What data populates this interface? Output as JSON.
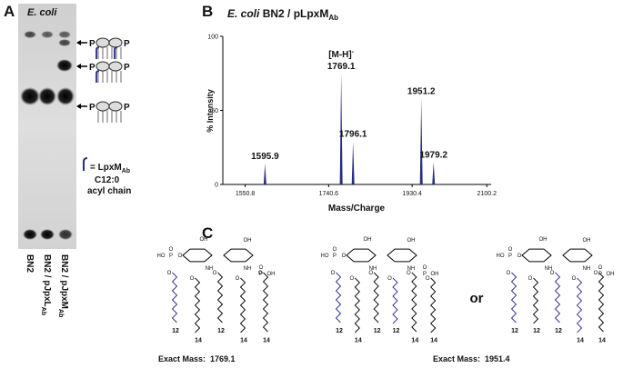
{
  "panels": {
    "a": "A",
    "b": "B",
    "c": "C"
  },
  "tlc": {
    "title": "E. coli",
    "lanes": [
      {
        "text": "BN2",
        "sub": null
      },
      {
        "text": "BN2 / pJpxL",
        "sub": "Ab"
      },
      {
        "text": "BN2 / pJpxM",
        "sub": "Ab"
      }
    ],
    "icon_label": "P",
    "legend": {
      "text": "= LpxM",
      "sub": "Ab",
      "line2": "C12:0",
      "line3": "acyl chain"
    }
  },
  "chart_data": {
    "type": "spectrum",
    "title": {
      "italic": "E. coli",
      "text": "BN2 / pLpxM",
      "sub": "Ab"
    },
    "xlabel": "Mass/Charge",
    "ylabel": "% Intensity",
    "x": [
      1595.9,
      1769.1,
      1796.1,
      1951.2,
      1979.2
    ],
    "values": [
      14,
      75,
      29,
      58,
      15
    ],
    "color": "#2a2a8a",
    "annotation": {
      "text": "[M-H]",
      "sup": "-"
    },
    "xlim": [
      1500,
      2110
    ],
    "xticks": [
      1550.8,
      1740.6,
      1930.4,
      2100.2
    ],
    "ylim": [
      0,
      100
    ],
    "yticks": [
      0,
      50,
      100
    ]
  },
  "structures": {
    "atoms": {
      "ho": "HO",
      "p": "P",
      "o": "O",
      "oh": "OH",
      "nh": "NH"
    },
    "or": "or",
    "mass_label": "Exact Mass:",
    "items": [
      {
        "chain_ends": [
          12,
          14,
          12,
          14,
          14
        ],
        "mass": 1769.1
      },
      {
        "chain_ends": [
          12,
          14,
          12,
          12,
          14,
          14
        ],
        "mass": 1951.4
      },
      {
        "chain_ends": [
          12,
          12,
          12,
          14,
          14
        ],
        "mass": 1951.4
      }
    ]
  }
}
